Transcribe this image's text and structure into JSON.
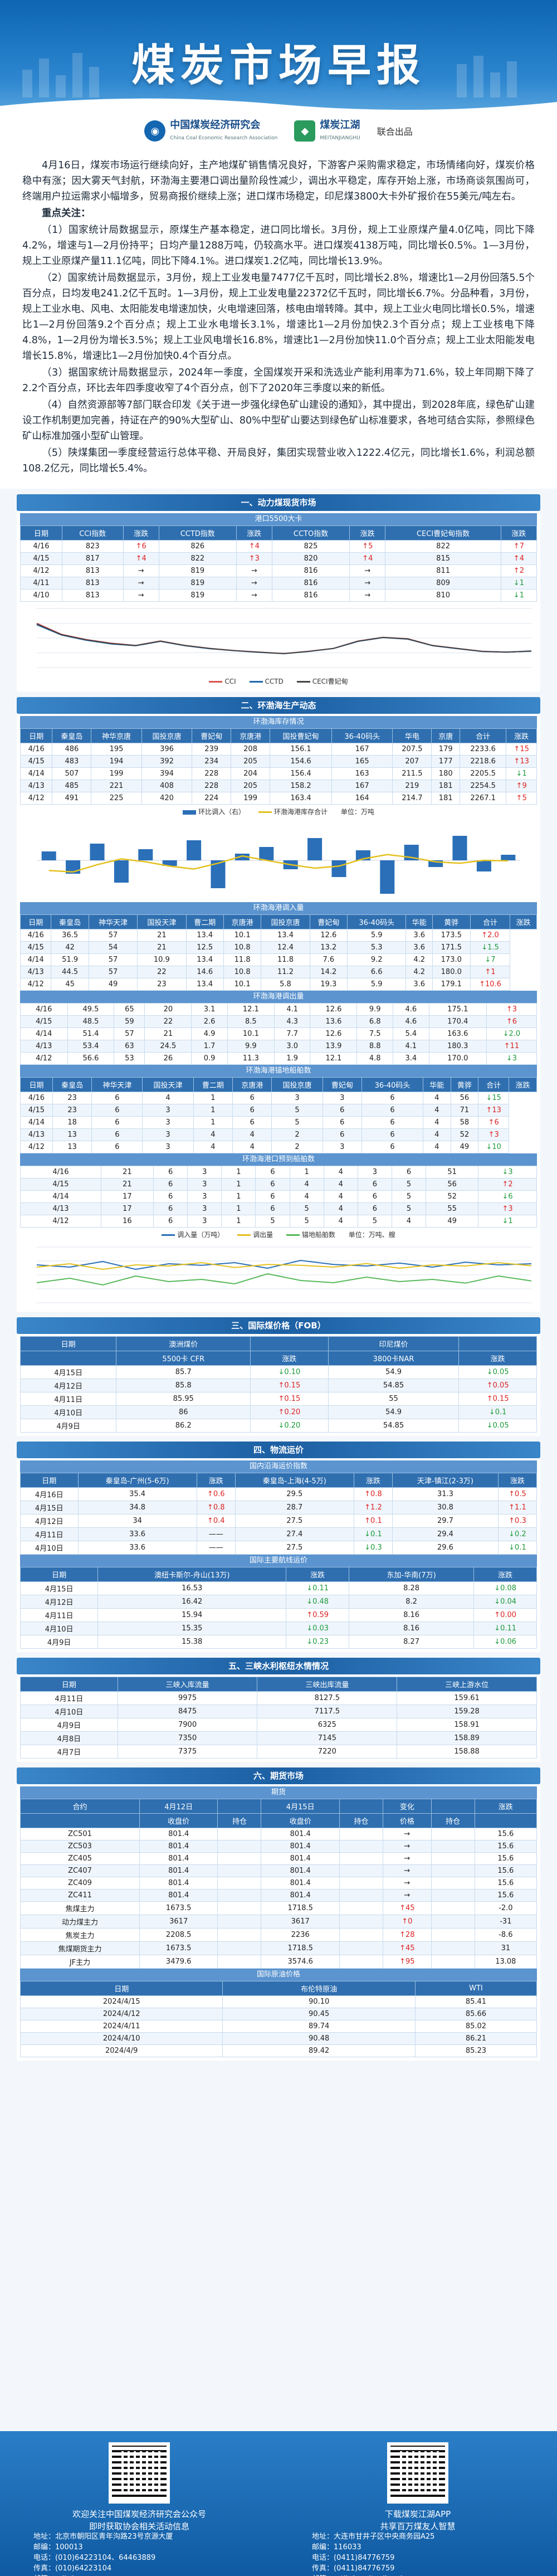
{
  "header": {
    "title": "煤炭市场早报",
    "org1_name": "中国煤炭经济研究会",
    "org1_sub": "China Coal Economic Research Association",
    "org2_name": "煤炭江湖",
    "org2_sub": "MEITANJIANGHU",
    "coop": "联合出品"
  },
  "intro": {
    "paragraphs": [
      "4月16日，煤炭市场运行继续向好，主产地煤矿销售情况良好，下游客户采购需求稳定，市场情绪向好，煤炭价格稳中有涨；因大雾天气封航，环渤海主要港口调出量阶段性减少，调出水平稳定，库存开始上涨，市场商谈氛围尚可，终端用户拉运需求小幅增多，贸易商报价继续上涨；进口煤市场稳定，印尼煤3800大卡外矿报价在55美元/吨左右。"
    ],
    "focus_title": "重点关注：",
    "focus": [
      "（1）国家统计局数据显示，原煤生产基本稳定，进口同比增长。3月份，规上工业原煤产量4.0亿吨，同比下降4.2%，增速与1—2月份持平；日均产量1288万吨，仍较高水平。进口煤炭4138万吨，同比增长0.5%。1—3月份，规上工业原煤产量11.1亿吨，同比下降4.1%。进口煤炭1.2亿吨，同比增长13.9%。",
      "（2）国家统计局数据显示，3月份，规上工业发电量7477亿千瓦时，同比增长2.8%，增速比1—2月份回落5.5个百分点，日均发电241.2亿千瓦时。1—3月份，规上工业发电量22372亿千瓦时，同比增长6.7%。分品种看，3月份，规上工业水电、风电、太阳能发电增速加快，火电增速回落，核电由增转降。其中，规上工业火电同比增长0.5%，增速比1—2月份回落9.2个百分点；规上工业水电增长3.1%，增速比1—2月份加快2.3个百分点；规上工业核电下降4.8%，1—2月份为增长3.5%；规上工业风电增长16.8%，增速比1—2月份加快11.0个百分点；规上工业太阳能发电增长15.8%，增速比1—2月份加快0.4个百分点。",
      "（3）据国家统计局数据显示，2024年一季度，全国煤炭开采和洗选业产能利用率为71.6%，较上年同期下降了2.2个百分点，环比去年四季度收窄了4个百分点，创下了2020年三季度以来的新低。",
      "（4）自然资源部等7部门联合印发《关于进一步强化绿色矿山建设的通知》，其中提出，到2028年底，绿色矿山建设工作机制更加完善，持证在产的90%大型矿山、80%中型矿山要达到绿色矿山标准要求，各地可结合实际，参照绿色矿山标准加强小型矿山管理。",
      "（5）陕煤集团一季度经营运行总体平稳、开局良好，集团实现营业收入1222.4亿元，同比增长1.6%，利润总额108.2亿元，同比增长5.4%。"
    ]
  },
  "sections": {
    "s1": "一、动力煤现货市场",
    "s2": "二、环渤海生产动态",
    "s3": "三、国际煤价格（FOB）",
    "s4": "四、物流运价",
    "s5": "五、三峡水利枢纽水情情况",
    "s6": "六、期货市场"
  },
  "spot": {
    "subtitle": "港口5500大卡",
    "headers": [
      "日期",
      "CCI指数",
      "涨跌",
      "CCTD指数",
      "涨跌",
      "CCTO指数",
      "涨跌",
      "CECI曹妃甸指数",
      "涨跌"
    ],
    "rows": [
      [
        "4/16",
        "823",
        "↑6",
        "826",
        "↑4",
        "825",
        "↑5",
        "822",
        "↑7"
      ],
      [
        "4/15",
        "817",
        "↑4",
        "822",
        "↑3",
        "820",
        "↑4",
        "815",
        "↑4"
      ],
      [
        "4/12",
        "813",
        "→",
        "819",
        "→",
        "816",
        "→",
        "811",
        "↑2"
      ],
      [
        "4/11",
        "813",
        "→",
        "819",
        "→",
        "816",
        "→",
        "809",
        "↓1"
      ],
      [
        "4/10",
        "813",
        "→",
        "819",
        "→",
        "816",
        "→",
        "810",
        "↓1"
      ]
    ],
    "legend": [
      "CCI",
      "CCTD",
      "CECI曹妃甸"
    ]
  },
  "chart_data": [
    {
      "type": "line",
      "title": "",
      "series": [
        {
          "name": "CCI",
          "values": [
            1200,
            1050,
            980,
            930,
            900,
            960,
            900,
            860,
            830,
            810,
            790,
            820,
            860,
            960,
            1010,
            990,
            900,
            860,
            820,
            810,
            823
          ]
        },
        {
          "name": "CCTD",
          "values": [
            1180,
            1040,
            970,
            920,
            895,
            955,
            895,
            855,
            828,
            806,
            788,
            818,
            858,
            955,
            1005,
            985,
            896,
            856,
            818,
            808,
            826
          ]
        },
        {
          "name": "CECI曹妃甸",
          "values": [
            1190,
            1045,
            975,
            925,
            898,
            958,
            898,
            858,
            829,
            808,
            789,
            819,
            859,
            958,
            1008,
            988,
            898,
            858,
            819,
            809,
            822
          ]
        }
      ],
      "ylim": [
        600,
        1400
      ]
    },
    {
      "type": "bar",
      "title": "",
      "series": [
        {
          "name": "环比调入（右）",
          "values": [
            8,
            -12,
            15,
            -20,
            10,
            -5,
            18,
            -25,
            6,
            12,
            -8,
            20,
            -15,
            9,
            -30,
            14,
            -6,
            22,
            -10,
            5
          ]
        },
        {
          "name": "环渤海港库存合计",
          "values": [
            1900,
            1850,
            2100,
            2300,
            2200,
            2050,
            1950,
            2150,
            2400,
            2250,
            2100,
            1980,
            2050,
            2300,
            2450,
            2350,
            2200,
            2150,
            2250,
            2233
          ]
        }
      ],
      "ylim": [
        1000,
        3500
      ]
    },
    {
      "type": "line",
      "title": "",
      "series": [
        {
          "name": "调入量（万吨）",
          "values": [
            170,
            160,
            185,
            150,
            175,
            168,
            180,
            155,
            190,
            172,
            165,
            178,
            160,
            182,
            170,
            175
          ]
        },
        {
          "name": "调出量",
          "values": [
            160,
            175,
            150,
            170,
            165,
            180,
            158,
            172,
            168,
            160,
            176,
            155,
            170,
            165,
            180,
            166
          ]
        },
        {
          "name": "锚地船舶数",
          "values": [
            90,
            110,
            80,
            120,
            95,
            105,
            85,
            130,
            100,
            90,
            115,
            95,
            105,
            88,
            120,
            98
          ]
        }
      ],
      "ylim": [
        0,
        250
      ]
    }
  ],
  "bohai": {
    "unit": "单位：万吨",
    "table1_title": "环渤海库存情况",
    "headers1": [
      "日期",
      "秦皇岛",
      "神华京唐",
      "国投京唐",
      "曹妃甸",
      "京唐港",
      "国投曹妃甸",
      "36-40码头",
      "华电",
      "京唐",
      "合计",
      "涨跌"
    ],
    "rows1": [
      [
        "4/16",
        "486",
        "195",
        "396",
        "239",
        "208",
        "156.1",
        "167",
        "207.5",
        "179",
        "2233.6",
        "↑15"
      ],
      [
        "4/15",
        "483",
        "194",
        "392",
        "234",
        "205",
        "154.6",
        "165",
        "207",
        "177",
        "2218.6",
        "↑13"
      ],
      [
        "4/14",
        "507",
        "199",
        "394",
        "228",
        "204",
        "156.4",
        "163",
        "211.5",
        "180",
        "2205.5",
        "↓1"
      ],
      [
        "4/13",
        "485",
        "221",
        "408",
        "228",
        "205",
        "158.2",
        "167",
        "219",
        "181",
        "2254.5",
        "↑9"
      ],
      [
        "4/12",
        "491",
        "225",
        "420",
        "224",
        "199",
        "163.4",
        "164",
        "214.7",
        "181",
        "2267.1",
        "↑5"
      ]
    ],
    "legend2": [
      "环比调入（右）",
      "环渤海港库存合计"
    ],
    "table2_title": "环渤海港调入量",
    "headers2": [
      "日期",
      "秦皇岛",
      "神华天津",
      "国投天津",
      "曹二期",
      "京唐港",
      "国投京唐",
      "曹妃甸",
      "36-40码头",
      "华能",
      "黄骅",
      "合计",
      "涨跌"
    ],
    "rows2": [
      [
        "4/16",
        "36.5",
        "57",
        "21",
        "13.4",
        "10.1",
        "13.4",
        "12.6",
        "5.9",
        "3.6",
        "173.5",
        "↑2.0"
      ],
      [
        "4/15",
        "42",
        "54",
        "21",
        "12.5",
        "10.8",
        "12.4",
        "13.2",
        "5.3",
        "3.6",
        "171.5",
        "↓1.5"
      ],
      [
        "4/14",
        "51.9",
        "57",
        "10.9",
        "13.4",
        "11.8",
        "11.8",
        "7.6",
        "9.2",
        "4.2",
        "173.0",
        "↓7"
      ],
      [
        "4/13",
        "44.5",
        "57",
        "22",
        "14.6",
        "10.8",
        "11.2",
        "14.2",
        "6.6",
        "4.2",
        "180.0",
        "↑1"
      ],
      [
        "4/12",
        "45",
        "49",
        "23",
        "13.4",
        "10.1",
        "5.8",
        "19.3",
        "5.9",
        "3.6",
        "179.1",
        "↑10.6"
      ]
    ],
    "table3_title": "环渤海港调出量",
    "rows3": [
      [
        "4/16",
        "49.5",
        "65",
        "20",
        "3.1",
        "12.1",
        "4.1",
        "12.6",
        "9.9",
        "4.6",
        "175.1",
        "↑3"
      ],
      [
        "4/15",
        "48.5",
        "59",
        "22",
        "2.6",
        "8.5",
        "4.3",
        "13.6",
        "6.8",
        "4.6",
        "170.4",
        "↑6"
      ],
      [
        "4/14",
        "51.4",
        "57",
        "21",
        "4.9",
        "10.1",
        "7.7",
        "12.6",
        "7.5",
        "5.4",
        "163.6",
        "↓2.0"
      ],
      [
        "4/13",
        "53.4",
        "63",
        "24.5",
        "1.7",
        "9.9",
        "3.0",
        "13.9",
        "8.8",
        "4.1",
        "180.3",
        "↑11"
      ],
      [
        "4/12",
        "56.6",
        "53",
        "26",
        "0.9",
        "11.3",
        "1.9",
        "12.1",
        "4.8",
        "3.4",
        "170.0",
        "↓3"
      ]
    ],
    "table4_title": "环渤海港锚地船舶数",
    "headers4": [
      "日期",
      "秦皇岛",
      "神华天津",
      "国投天津",
      "曹二期",
      "京唐港",
      "国投京唐",
      "曹妃甸",
      "36-40码头",
      "华能",
      "黄骅",
      "合计",
      "涨跌"
    ],
    "rows4": [
      [
        "4/16",
        "23",
        "6",
        "4",
        "1",
        "6",
        "3",
        "3",
        "6",
        "4",
        "56",
        "↓15"
      ],
      [
        "4/15",
        "23",
        "6",
        "3",
        "1",
        "6",
        "5",
        "6",
        "6",
        "4",
        "71",
        "↑13"
      ],
      [
        "4/14",
        "18",
        "6",
        "3",
        "1",
        "6",
        "5",
        "6",
        "6",
        "4",
        "58",
        "↑6"
      ],
      [
        "4/13",
        "13",
        "6",
        "3",
        "4",
        "4",
        "2",
        "6",
        "6",
        "4",
        "52",
        "↑3"
      ],
      [
        "4/12",
        "13",
        "6",
        "3",
        "4",
        "4",
        "2",
        "3",
        "6",
        "4",
        "49",
        "↓10"
      ]
    ],
    "table5_title": "环渤海港口预到船舶数",
    "rows5": [
      [
        "4/16",
        "21",
        "6",
        "3",
        "1",
        "6",
        "1",
        "4",
        "3",
        "6",
        "51",
        "↓3"
      ],
      [
        "4/15",
        "21",
        "6",
        "3",
        "1",
        "6",
        "4",
        "4",
        "6",
        "5",
        "56",
        "↑2"
      ],
      [
        "4/14",
        "17",
        "6",
        "3",
        "1",
        "6",
        "4",
        "4",
        "6",
        "5",
        "52",
        "↓6"
      ],
      [
        "4/13",
        "17",
        "6",
        "3",
        "1",
        "6",
        "5",
        "4",
        "6",
        "5",
        "55",
        "↑3"
      ],
      [
        "4/12",
        "16",
        "6",
        "3",
        "1",
        "5",
        "5",
        "4",
        "5",
        "4",
        "49",
        "↓1"
      ]
    ],
    "legend3": [
      "调入量（万吨）",
      "调出量",
      "锚地船舶数"
    ],
    "unit3": "单位：万吨、艘"
  },
  "intl": {
    "headers": [
      "日期",
      "澳洲煤价",
      "",
      "印尼煤价",
      ""
    ],
    "sub": [
      "",
      "5500卡 CFR",
      "涨跌",
      "3800卡NAR",
      "涨跌"
    ],
    "rows": [
      [
        "4月15日",
        "85.7",
        "↓0.10",
        "54.9",
        "↓0.05"
      ],
      [
        "4月12日",
        "85.8",
        "↑0.15",
        "54.85",
        "↑0.05"
      ],
      [
        "4月11日",
        "85.95",
        "↑0.15",
        "55",
        "↑0.15"
      ],
      [
        "4月10日",
        "86",
        "↑0.20",
        "54.9",
        "↓0.1"
      ],
      [
        "4月9日",
        "86.2",
        "↓0.20",
        "54.85",
        "↓0.05"
      ]
    ]
  },
  "freight": {
    "title1": "国内沿海运价指数",
    "headers1": [
      "日期",
      "秦皇岛-广州(5-6万)",
      "涨跌",
      "秦皇岛-上海(4-5万)",
      "涨跌",
      "天津-镇江(2-3万)",
      "涨跌"
    ],
    "rows1": [
      [
        "4月16日",
        "35.4",
        "↑0.6",
        "29.5",
        "↑0.8",
        "31.3",
        "↑0.5"
      ],
      [
        "4月15日",
        "34.8",
        "↑0.8",
        "28.7",
        "↑1.2",
        "30.8",
        "↑1.1"
      ],
      [
        "4月12日",
        "34",
        "↑0.4",
        "27.5",
        "↑0.1",
        "29.7",
        "↑0.3"
      ],
      [
        "4月11日",
        "33.6",
        "——",
        "27.4",
        "↓0.1",
        "29.4",
        "↓0.2"
      ],
      [
        "4月10日",
        "33.6",
        "——",
        "27.5",
        "↓0.3",
        "29.6",
        "↓0.1"
      ]
    ],
    "title2": "国际主要航线运价",
    "headers2": [
      "日期",
      "澳纽卡斯尔-舟山(13万)",
      "涨跌",
      "东加-华南(7万)",
      "涨跌"
    ],
    "rows2": [
      [
        "4月15日",
        "16.53",
        "↓0.11",
        "8.28",
        "↓0.08"
      ],
      [
        "4月12日",
        "16.42",
        "↓0.48",
        "8.2",
        "↓0.04"
      ],
      [
        "4月11日",
        "15.94",
        "↑0.59",
        "8.16",
        "↑0.00"
      ],
      [
        "4月10日",
        "15.35",
        "↓0.03",
        "8.16",
        "↓0.11"
      ],
      [
        "4月9日",
        "15.38",
        "↓0.23",
        "8.27",
        "↓0.06"
      ]
    ]
  },
  "water": {
    "headers": [
      "日期",
      "三峡入库流量",
      "三峡出库流量",
      "三峡上游水位"
    ],
    "rows": [
      [
        "4月11日",
        "9975",
        "8127.5",
        "159.61"
      ],
      [
        "4月10日",
        "8475",
        "7117.5",
        "159.28"
      ],
      [
        "4月9日",
        "7900",
        "6325",
        "158.91"
      ],
      [
        "4月8日",
        "7350",
        "7145",
        "158.89"
      ],
      [
        "4月7日",
        "7375",
        "7220",
        "158.88"
      ]
    ]
  },
  "futures": {
    "title1": "期货",
    "headers1": [
      "合约",
      "4月12日",
      "",
      "4月15日",
      "",
      "变化",
      "",
      "涨跌"
    ],
    "sub1": [
      "",
      "收盘价",
      "持仓",
      "收盘价",
      "持仓",
      "价格",
      "持仓",
      ""
    ],
    "rows1": [
      [
        "ZC501",
        "801.4",
        "",
        "801.4",
        "",
        "→",
        "",
        "15.6"
      ],
      [
        "ZC503",
        "801.4",
        "",
        "801.4",
        "",
        "→",
        "",
        "15.6"
      ],
      [
        "ZC405",
        "801.4",
        "",
        "801.4",
        "",
        "→",
        "",
        "15.6"
      ],
      [
        "ZC407",
        "801.4",
        "",
        "801.4",
        "",
        "→",
        "",
        "15.6"
      ],
      [
        "ZC409",
        "801.4",
        "",
        "801.4",
        "",
        "→",
        "",
        "15.6"
      ],
      [
        "ZC411",
        "801.4",
        "",
        "801.4",
        "",
        "→",
        "",
        "15.6"
      ],
      [
        "焦煤主力",
        "1673.5",
        "",
        "1718.5",
        "",
        "↑45",
        "",
        "-2.0"
      ],
      [
        "动力煤主力",
        "3617",
        "",
        "3617",
        "",
        "↑0",
        "",
        "-31"
      ],
      [
        "焦炭主力",
        "2208.5",
        "",
        "2236",
        "",
        "↑28",
        "",
        "-8.6"
      ],
      [
        "焦煤期货主力",
        "1673.5",
        "",
        "1718.5",
        "",
        "↑45",
        "",
        "31"
      ],
      [
        "JF主力",
        "3479.6",
        "",
        "3574.6",
        "",
        "↑95",
        "",
        "13.08"
      ]
    ],
    "title2": "国际原油价格",
    "headers2": [
      "日期",
      "布伦特原油",
      "WTI"
    ],
    "rows2": [
      [
        "2024/4/15",
        "90.10",
        "85.41"
      ],
      [
        "2024/4/12",
        "90.45",
        "85.66"
      ],
      [
        "2024/4/11",
        "89.74",
        "85.02"
      ],
      [
        "2024/4/10",
        "90.48",
        "86.21"
      ],
      [
        "2024/4/9",
        "89.42",
        "85.23"
      ]
    ]
  },
  "footer": {
    "left_caption": "欢迎关注中国煤炭经济研究会公众号",
    "left_caption2": "即时获取协会相关活动信息",
    "right_caption": "下载煤炭江湖APP",
    "right_caption2": "共享百万煤友人智慧",
    "left_info": [
      "地址：北京市朝阳区青年沟路23号京源大厦",
      "邮编：100013",
      "电话：(010)64223104、64463889",
      "传真：(010)64223104",
      "邮箱：mjh@ccera.com.cn",
      "网址：www.ccera.com.cn"
    ],
    "right_info": [
      "地址：大连市甘井子区中央商务园A25",
      "邮编：116033",
      "电话：(0411)84776759",
      "传真：(0411)84776759",
      "邮箱：mtjh@meitanjianghu.com",
      "网址：www.meitanjianghu.com"
    ]
  }
}
